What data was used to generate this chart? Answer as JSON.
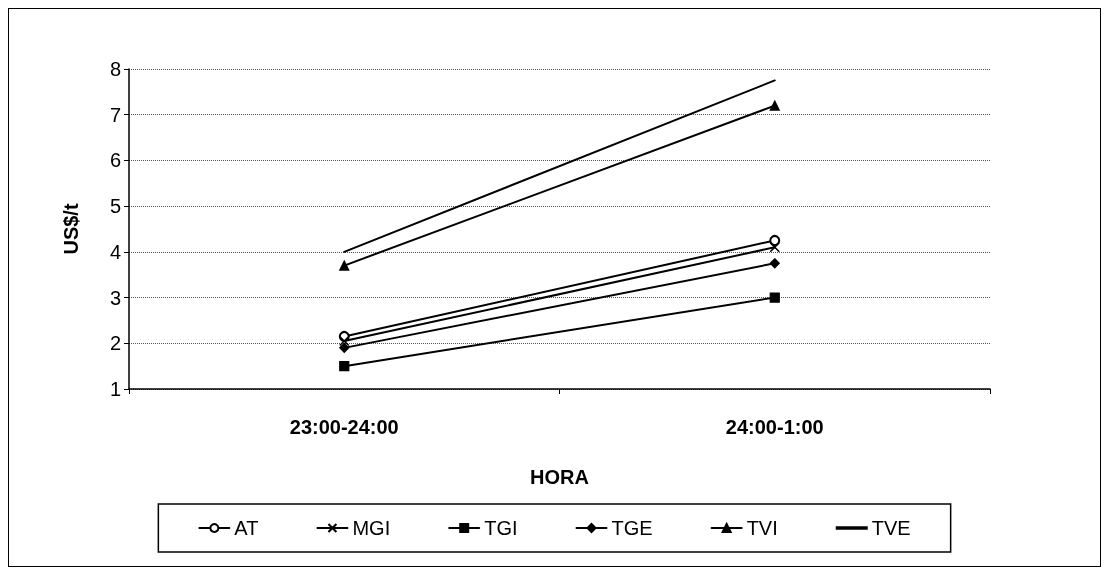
{
  "chart_data": {
    "type": "line",
    "xlabel": "HORA",
    "ylabel": "US$/t",
    "categories": [
      "23:00-24:00",
      "24:00-1:00"
    ],
    "ylim": [
      1,
      8
    ],
    "yticks": [
      1,
      2,
      3,
      4,
      5,
      6,
      7,
      8
    ],
    "grid": "y",
    "legend": "bottom",
    "line_style": "solid",
    "series": [
      {
        "name": "AT",
        "color": "#000000",
        "marker": "circle",
        "values": [
          2.15,
          4.25
        ]
      },
      {
        "name": "MGI",
        "color": "#000000",
        "marker": "cross",
        "values": [
          2.05,
          4.1
        ]
      },
      {
        "name": "TGI",
        "color": "#000000",
        "marker": "square",
        "values": [
          1.5,
          3.0
        ]
      },
      {
        "name": "TGE",
        "color": "#000000",
        "marker": "diamond",
        "values": [
          1.9,
          3.75
        ]
      },
      {
        "name": "TVI",
        "color": "#000000",
        "marker": "triangle",
        "values": [
          3.7,
          7.2
        ]
      },
      {
        "name": "TVE",
        "color": "#000000",
        "marker": "none",
        "values": [
          4.0,
          7.75
        ]
      }
    ]
  }
}
